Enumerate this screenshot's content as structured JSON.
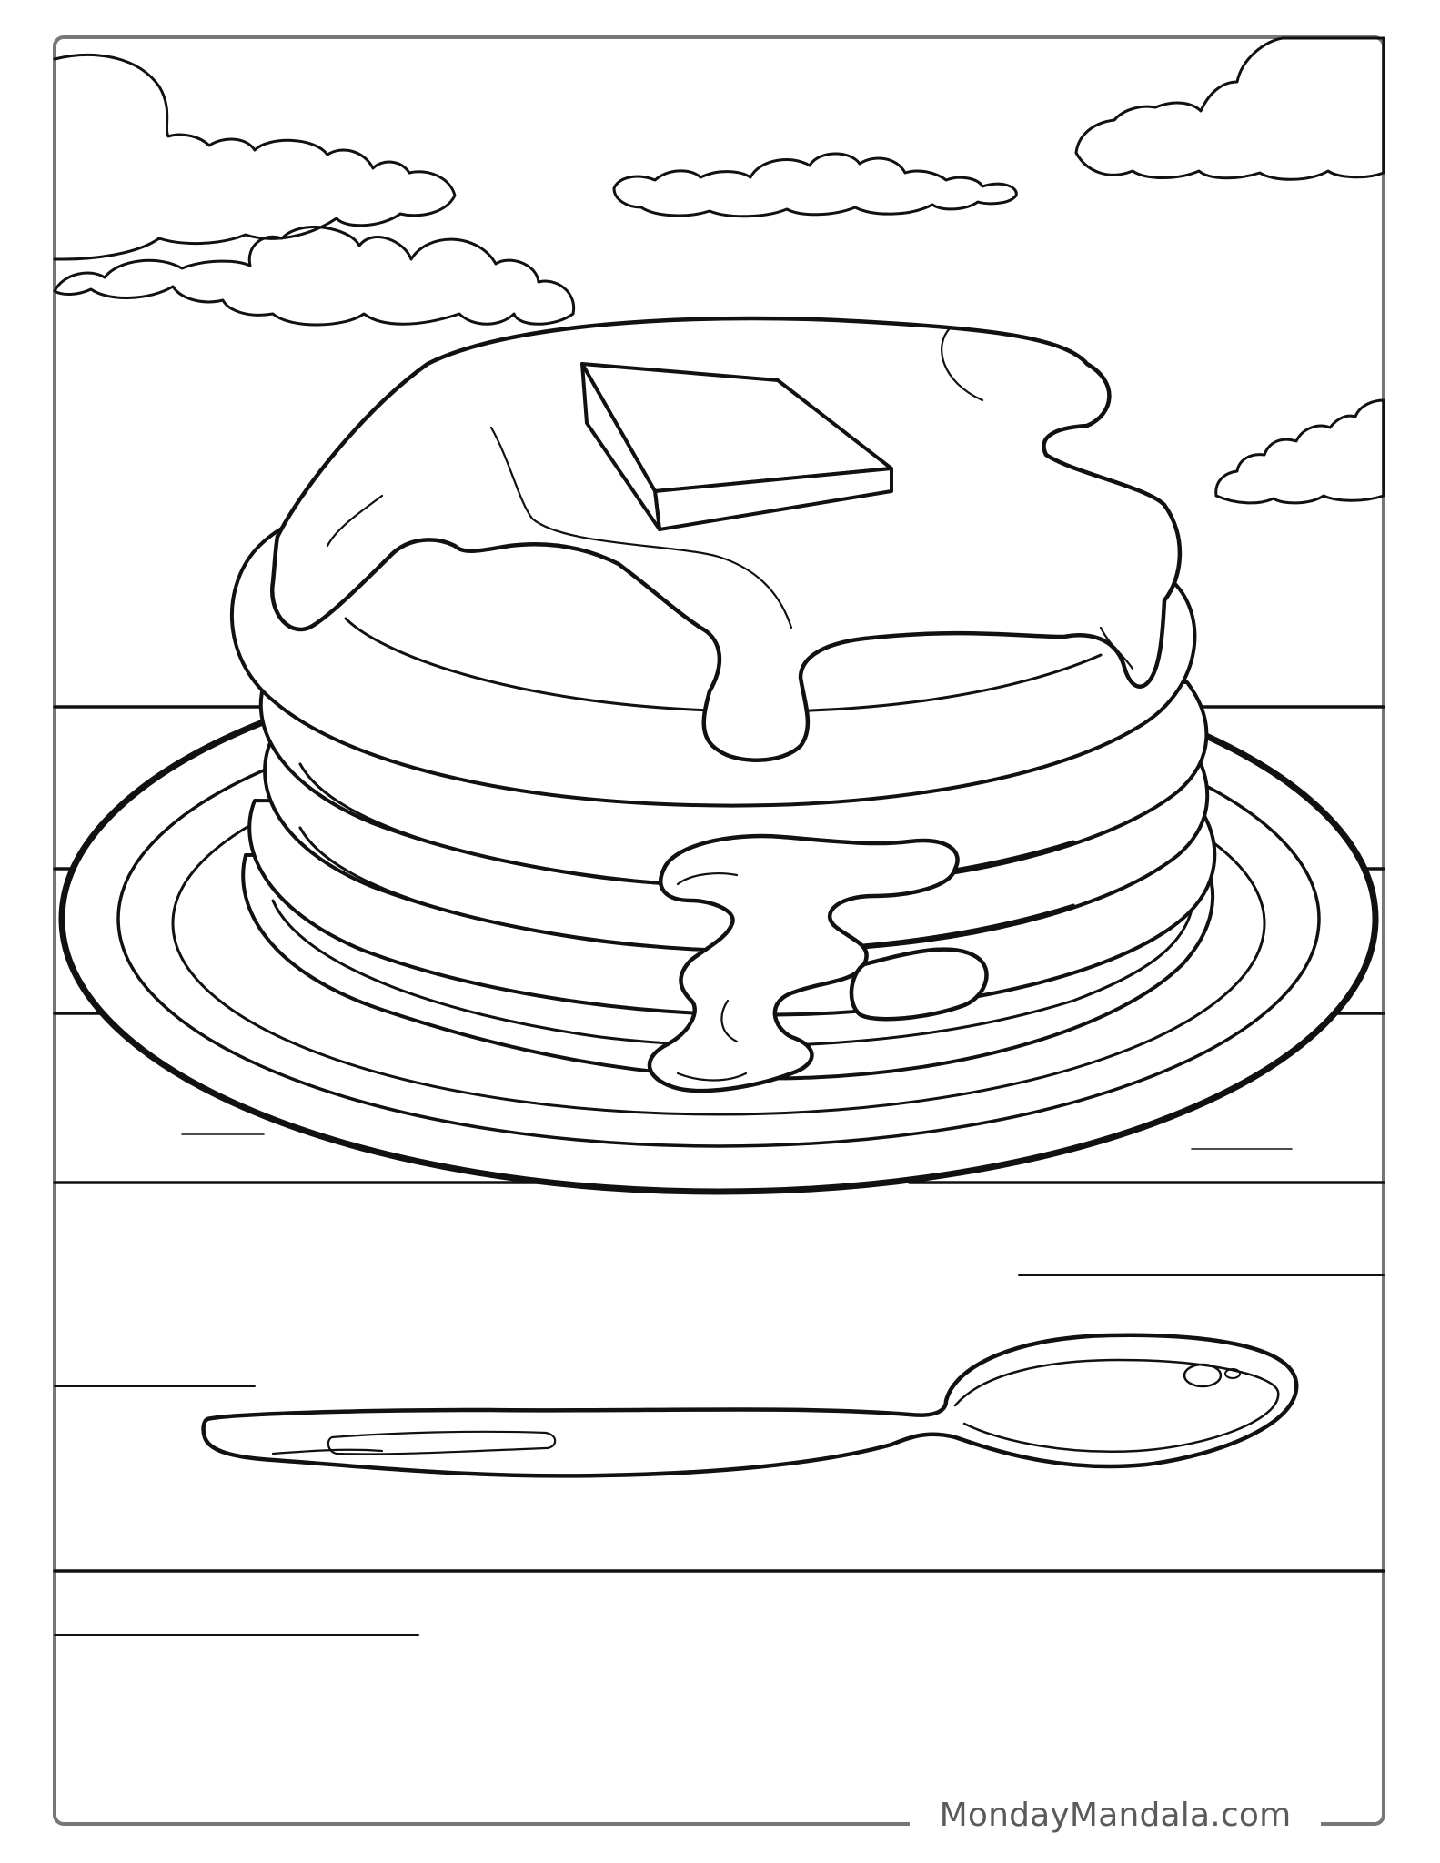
{
  "page": {
    "watermark": "MondayMandala.com"
  },
  "colors": {
    "line": "#111111",
    "paper": "#ffffff",
    "watermark_text": "#5a5a5a",
    "frame": "#777777"
  },
  "scene": {
    "icons": [
      "cloud-icon",
      "pancake-stack-icon",
      "butter-icon",
      "syrup-icon",
      "plate-icon",
      "spoon-icon",
      "table-plank-icon"
    ]
  }
}
